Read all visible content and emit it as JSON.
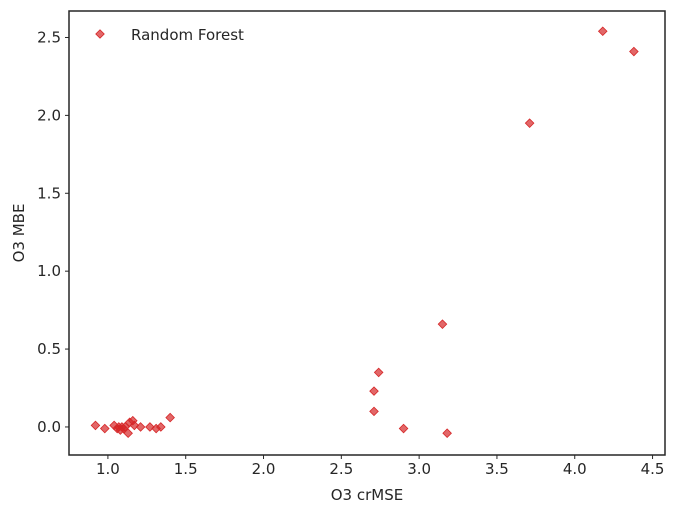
{
  "chart_data": {
    "type": "scatter",
    "title": "",
    "xlabel": "O3 crMSE",
    "ylabel": "O3 MBE",
    "xlim": [
      0.75,
      4.58
    ],
    "ylim": [
      -0.18,
      2.67
    ],
    "xticks": [
      1.0,
      1.5,
      2.0,
      2.5,
      3.0,
      3.5,
      4.0,
      4.5
    ],
    "xtick_labels": [
      "1.0",
      "1.5",
      "2.0",
      "2.5",
      "3.0",
      "3.5",
      "4.0",
      "4.5"
    ],
    "yticks": [
      0.0,
      0.5,
      1.0,
      1.5,
      2.0,
      2.5
    ],
    "ytick_labels": [
      "0.0",
      "0.5",
      "1.0",
      "1.5",
      "2.0",
      "2.5"
    ],
    "grid": false,
    "legend": {
      "position": "top-left"
    },
    "series": [
      {
        "name": "Random Forest",
        "marker": "diamond",
        "color": "#d62728",
        "points": [
          {
            "x": 0.92,
            "y": 0.01
          },
          {
            "x": 0.98,
            "y": -0.01
          },
          {
            "x": 1.04,
            "y": 0.01
          },
          {
            "x": 1.06,
            "y": -0.01
          },
          {
            "x": 1.07,
            "y": 0.0
          },
          {
            "x": 1.08,
            "y": -0.02
          },
          {
            "x": 1.09,
            "y": 0.0
          },
          {
            "x": 1.1,
            "y": -0.01
          },
          {
            "x": 1.11,
            "y": 0.0
          },
          {
            "x": 1.13,
            "y": -0.04
          },
          {
            "x": 1.14,
            "y": 0.03
          },
          {
            "x": 1.16,
            "y": 0.04
          },
          {
            "x": 1.17,
            "y": 0.01
          },
          {
            "x": 1.21,
            "y": 0.0
          },
          {
            "x": 1.27,
            "y": 0.0
          },
          {
            "x": 1.31,
            "y": -0.01
          },
          {
            "x": 1.34,
            "y": 0.0
          },
          {
            "x": 1.4,
            "y": 0.06
          },
          {
            "x": 2.71,
            "y": 0.1
          },
          {
            "x": 2.71,
            "y": 0.23
          },
          {
            "x": 2.74,
            "y": 0.35
          },
          {
            "x": 2.9,
            "y": -0.01
          },
          {
            "x": 3.15,
            "y": 0.66
          },
          {
            "x": 3.18,
            "y": -0.04
          },
          {
            "x": 3.71,
            "y": 1.95
          },
          {
            "x": 4.18,
            "y": 2.54
          },
          {
            "x": 4.38,
            "y": 2.41
          }
        ]
      }
    ]
  }
}
